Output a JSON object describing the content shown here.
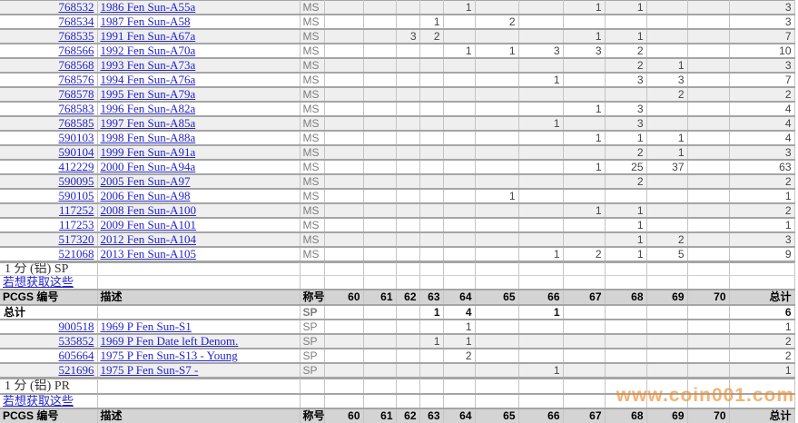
{
  "grade_columns": [
    "60",
    "61",
    "62",
    "63",
    "64",
    "65",
    "66",
    "67",
    "68",
    "69",
    "70"
  ],
  "header": {
    "pcgs": "PCGS 编号",
    "desc": "描述",
    "desig": "称号",
    "total": "总计"
  },
  "totals_label": "总计",
  "ms_section": {
    "rows": [
      {
        "pcgs": "768532",
        "desc": "1986 Fen Sun-A55a",
        "desig": "MS",
        "grades": {
          "64": 1,
          "67": 1,
          "68": 1
        },
        "total": 3
      },
      {
        "pcgs": "768534",
        "desc": "1987 Fen Sun-A58",
        "desig": "MS",
        "grades": {
          "63": 1,
          "65": 2
        },
        "total": 3
      },
      {
        "pcgs": "768535",
        "desc": "1991 Fen Sun-A67a",
        "desig": "MS",
        "grades": {
          "62": 3,
          "63": 2,
          "67": 1,
          "68": 1
        },
        "total": 7
      },
      {
        "pcgs": "768566",
        "desc": "1992 Fen Sun-A70a",
        "desig": "MS",
        "grades": {
          "64": 1,
          "65": 1,
          "66": 3,
          "67": 3,
          "68": 2
        },
        "total": 10
      },
      {
        "pcgs": "768568",
        "desc": "1993 Fen Sun-A73a",
        "desig": "MS",
        "grades": {
          "68": 2,
          "69": 1
        },
        "total": 3
      },
      {
        "pcgs": "768576",
        "desc": "1994 Fen Sun-A76a",
        "desig": "MS",
        "grades": {
          "66": 1,
          "68": 3,
          "69": 3
        },
        "total": 7
      },
      {
        "pcgs": "768578",
        "desc": "1995 Fen Sun-A79a",
        "desig": "MS",
        "grades": {
          "69": 2
        },
        "total": 2
      },
      {
        "pcgs": "768583",
        "desc": "1996 Fen Sun-A82a",
        "desig": "MS",
        "grades": {
          "67": 1,
          "68": 3
        },
        "total": 4
      },
      {
        "pcgs": "768585",
        "desc": "1997 Fen Sun-A85a",
        "desig": "MS",
        "grades": {
          "66": 1,
          "68": 3
        },
        "total": 4
      },
      {
        "pcgs": "590103",
        "desc": "1998 Fen Sun-A88a",
        "desig": "MS",
        "grades": {
          "67": 1,
          "68": 1,
          "69": 1
        },
        "total": 4
      },
      {
        "pcgs": "590104",
        "desc": "1999 Fen Sun-A91a",
        "desig": "MS",
        "grades": {
          "68": 2,
          "69": 1
        },
        "total": 3
      },
      {
        "pcgs": "412229",
        "desc": "2000 Fen Sun-A94a",
        "desig": "MS",
        "grades": {
          "67": 1,
          "68": 25,
          "69": 37
        },
        "total": 63
      },
      {
        "pcgs": "590095",
        "desc": "2005 Fen Sun-A97",
        "desig": "MS",
        "grades": {
          "68": 2
        },
        "total": 2
      },
      {
        "pcgs": "590105",
        "desc": "2006 Fen Sun-A98",
        "desig": "MS",
        "grades": {
          "65": 1
        },
        "total": 1
      },
      {
        "pcgs": "117252",
        "desc": "2008 Fen Sun-A100",
        "desig": "MS",
        "grades": {
          "67": 1,
          "68": 1
        },
        "total": 2
      },
      {
        "pcgs": "117253",
        "desc": "2009 Fen Sun-A101",
        "desig": "MS",
        "grades": {
          "68": 1
        },
        "total": 1
      },
      {
        "pcgs": "517320",
        "desc": "2012 Fen Sun-A104",
        "desig": "MS",
        "grades": {
          "68": 1,
          "69": 2
        },
        "total": 3
      },
      {
        "pcgs": "521068",
        "desc": "2013 Fen Sun-A105",
        "desig": "MS",
        "grades": {
          "66": 1,
          "67": 2,
          "68": 1,
          "69": 5
        },
        "total": 9
      }
    ]
  },
  "sp_section": {
    "title": "1 分 (铝) SP",
    "link": "若想获取这些",
    "totals_row": {
      "desig": "SP",
      "grades": {
        "63": 1,
        "64": 4,
        "66": 1
      },
      "total": 6
    },
    "rows": [
      {
        "pcgs": "900518",
        "desc": "1969 P Fen Sun-S1",
        "desig": "SP",
        "grades": {
          "64": 1
        },
        "total": 1
      },
      {
        "pcgs": "535852",
        "desc": "1969 P Fen Date left Denom.",
        "desig": "SP",
        "grades": {
          "63": 1,
          "64": 1
        },
        "total": 2
      },
      {
        "pcgs": "605664",
        "desc": "1975 P Fen Sun-S13 - Young",
        "desig": "SP",
        "grades": {
          "64": 2
        },
        "total": 2
      },
      {
        "pcgs": "521696",
        "desc": "1975 P Fen Sun-S7 -",
        "desig": "SP",
        "grades": {
          "66": 1
        },
        "total": 1
      }
    ]
  },
  "pr_section": {
    "title": "1 分 (铝) PR",
    "link": "若想获取这些"
  },
  "watermark": "www.coin001.com",
  "colors": {
    "link_blue": "#2323cb",
    "watermark_orange": "#f0861f",
    "stripe_gray": "#efefef",
    "header_gray": "#d4d4d4",
    "border_dark": "#a5a5a5",
    "border_light": "#c4c4c4",
    "designation_gray": "#7e7e7e",
    "value_gray": "#444444"
  }
}
